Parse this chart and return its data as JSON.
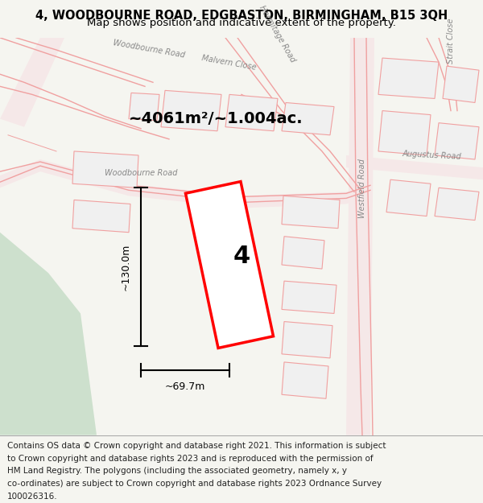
{
  "title_line1": "4, WOODBOURNE ROAD, EDGBASTON, BIRMINGHAM, B15 3QH",
  "title_line2": "Map shows position and indicative extent of the property.",
  "footer_lines": [
    "Contains OS data © Crown copyright and database right 2021. This information is subject",
    "to Crown copyright and database rights 2023 and is reproduced with the permission of",
    "HM Land Registry. The polygons (including the associated geometry, namely x, y",
    "co-ordinates) are subject to Crown copyright and database rights 2023 Ordnance Survey",
    "100026316."
  ],
  "area_label": "~4061m²/~1.004ac.",
  "width_label": "~69.7m",
  "height_label": "~130.0m",
  "property_number": "4",
  "bg_color": "#f5f5f0",
  "map_bg": "#ffffff",
  "road_color": "#f0a0a0",
  "road_fill": "#f5e8e8",
  "green_area": "#cde0cd",
  "property_color": "#ff0000",
  "property_fill": "#ffffff",
  "footer_bg": "#ffffff",
  "title_fontsize": 10.5,
  "subtitle_fontsize": 9.5,
  "footer_fontsize": 7.5
}
